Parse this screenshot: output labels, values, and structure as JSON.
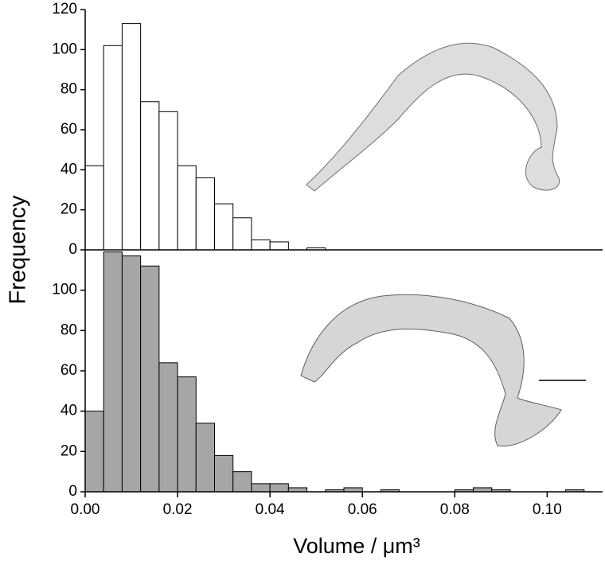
{
  "chart_data": [
    {
      "type": "histogram",
      "ylabel": "Frequency",
      "bins": [
        0,
        0.004,
        0.008,
        0.012,
        0.016,
        0.02,
        0.024,
        0.028,
        0.032,
        0.036,
        0.04,
        0.044,
        0.048,
        0.052,
        0.056,
        0.06,
        0.064,
        0.068,
        0.072,
        0.076,
        0.08,
        0.084,
        0.088,
        0.092,
        0.096,
        0.1,
        0.104,
        0.108,
        0.112
      ],
      "values": [
        42,
        102,
        113,
        74,
        69,
        42,
        36,
        23,
        16,
        5,
        4,
        0,
        1,
        0,
        0,
        0,
        0,
        0,
        0,
        0,
        0,
        0,
        0,
        0,
        0,
        0,
        0,
        0
      ],
      "color": "#ffffff",
      "xlim": [
        0,
        0.112
      ],
      "ylim": [
        0,
        120
      ],
      "yticks": [
        0,
        20,
        40,
        60,
        80,
        100,
        120
      ]
    },
    {
      "type": "histogram",
      "xlabel": "Volume / μm³",
      "bins": [
        0,
        0.004,
        0.008,
        0.012,
        0.016,
        0.02,
        0.024,
        0.028,
        0.032,
        0.036,
        0.04,
        0.044,
        0.048,
        0.052,
        0.056,
        0.06,
        0.064,
        0.068,
        0.072,
        0.076,
        0.08,
        0.084,
        0.088,
        0.092,
        0.096,
        0.1,
        0.104,
        0.108,
        0.112
      ],
      "values": [
        40,
        119,
        117,
        112,
        64,
        57,
        34,
        18,
        10,
        4,
        4,
        2,
        0,
        1,
        2,
        0,
        1,
        0,
        0,
        0,
        1,
        2,
        1,
        0,
        0,
        0,
        1,
        0
      ],
      "color": "#a6a6a6",
      "xlim": [
        0,
        0.112
      ],
      "xticks": [
        {
          "value": 0,
          "label": "0.00"
        },
        {
          "value": 0.02,
          "label": "0.02"
        },
        {
          "value": 0.04,
          "label": "0.04"
        },
        {
          "value": 0.06,
          "label": "0.06"
        },
        {
          "value": 0.08,
          "label": "0.08"
        },
        {
          "value": 0.1,
          "label": "0.10"
        }
      ],
      "ylim": [
        0,
        120
      ],
      "yticks": [
        0,
        20,
        40,
        60,
        80,
        100
      ]
    }
  ]
}
